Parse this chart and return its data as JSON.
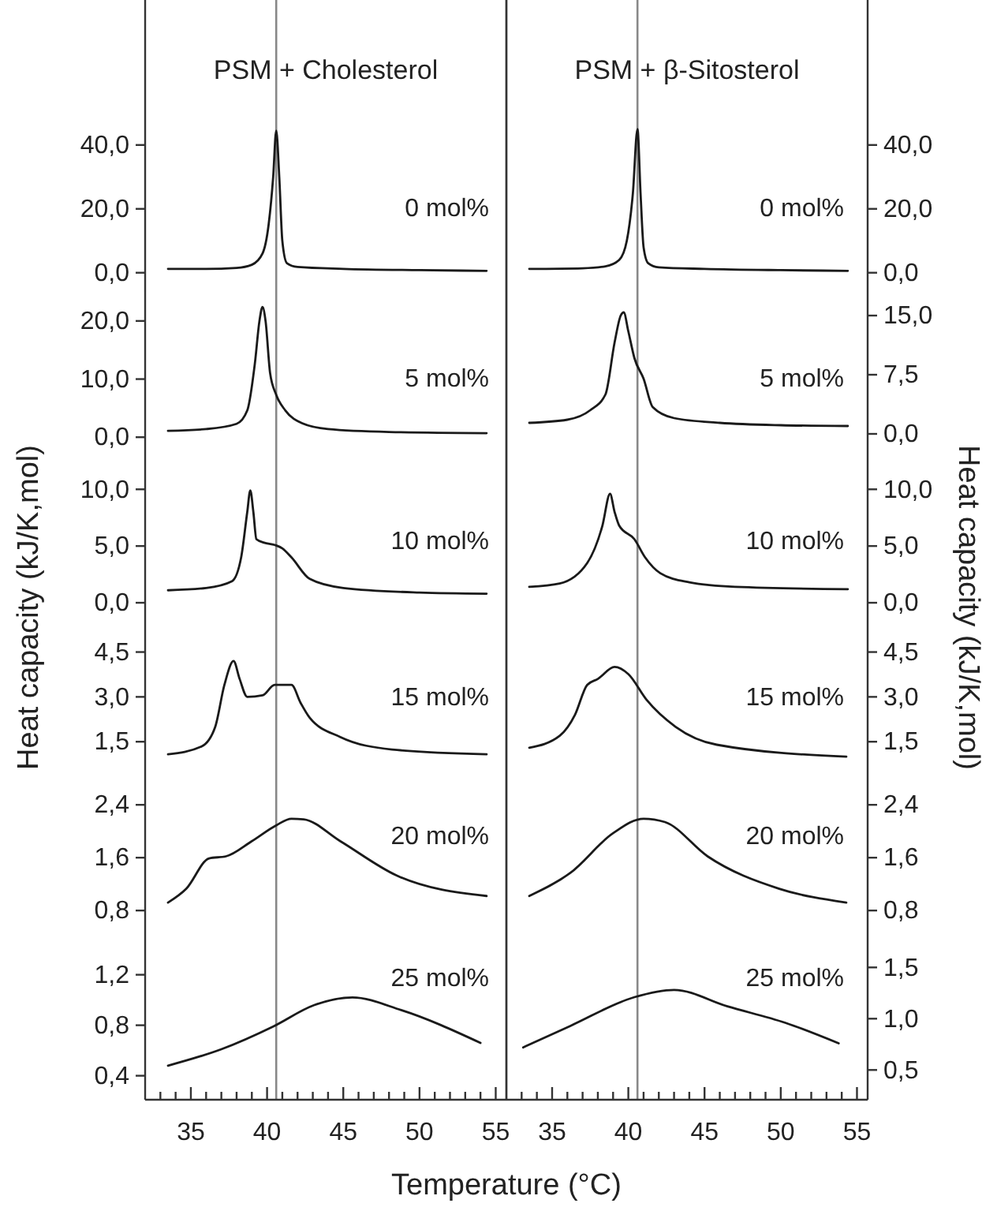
{
  "chart_data": [
    {
      "type": "line",
      "title": "PSM + Cholesterol",
      "annotations": [
        "0 mol%"
      ],
      "xlim": [
        32,
        55.7
      ],
      "ylim": [
        -6,
        85.4
      ],
      "yticks": [
        {
          "value": 0,
          "label": "0,0"
        },
        {
          "value": 20,
          "label": "20,0"
        },
        {
          "value": 40,
          "label": "40,0"
        }
      ],
      "tick_labels": "y",
      "ref_lines": [
        {
          "axis": "x",
          "value": 40.6,
          "color": "#888888"
        }
      ],
      "series": [
        {
          "color": "#1a1a1a",
          "x": [
            33.5,
            36,
            38,
            39,
            39.7,
            40.1,
            40.4,
            40.6,
            40.8,
            41.0,
            41.3,
            42,
            45,
            50,
            54.4
          ],
          "values": [
            1.2,
            1.2,
            1.5,
            2.5,
            6,
            15,
            30,
            44.5,
            30,
            10,
            3,
            1.8,
            1.2,
            0.8,
            0.6
          ]
        }
      ]
    },
    {
      "type": "line",
      "title": "PSM + β-Sitosterol",
      "annotations": [
        "0 mol%"
      ],
      "xlim": [
        32,
        55.7
      ],
      "ylim": [
        -6,
        85.4
      ],
      "yticks": [
        {
          "value": 0,
          "label": "0,0"
        },
        {
          "value": 20,
          "label": "20,0"
        },
        {
          "value": 40,
          "label": "40,0"
        }
      ],
      "tick_labels": "y",
      "ref_lines": [
        {
          "axis": "x",
          "value": 40.6,
          "color": "#888888"
        }
      ],
      "series": [
        {
          "color": "#1a1a1a",
          "x": [
            33.5,
            37,
            38.5,
            39.4,
            39.9,
            40.3,
            40.6,
            40.8,
            41.0,
            41.3,
            42,
            45,
            50,
            54.4
          ],
          "values": [
            1.2,
            1.4,
            2,
            4,
            10,
            25,
            45,
            25,
            8,
            3,
            1.7,
            1.2,
            0.8,
            0.6
          ]
        }
      ]
    },
    {
      "type": "line",
      "annotations": [
        "5 mol%"
      ],
      "xlim": [
        32,
        55.7
      ],
      "ylim": [
        -3.5,
        25
      ],
      "yticks": [
        {
          "value": 0,
          "label": "0,0"
        },
        {
          "value": 10,
          "label": "10,0"
        },
        {
          "value": 20,
          "label": "20,0"
        }
      ],
      "tick_labels": "y",
      "ref_lines": [
        {
          "axis": "x",
          "value": 40.6,
          "color": "#888888"
        }
      ],
      "series": [
        {
          "color": "#1a1a1a",
          "x": [
            33.5,
            36,
            38,
            38.7,
            39.2,
            39.5,
            39.7,
            39.9,
            40.2,
            40.6,
            41.2,
            42.3,
            44,
            48,
            54.4
          ],
          "values": [
            1.1,
            1.4,
            2.3,
            4.6,
            12.7,
            20,
            22.4,
            20,
            11,
            7.3,
            4.6,
            2.4,
            1.4,
            0.9,
            0.7
          ]
        }
      ]
    },
    {
      "type": "line",
      "annotations": [
        "5 mol%"
      ],
      "xlim": [
        32,
        55.7
      ],
      "ylim": [
        -3,
        18
      ],
      "yticks": [
        {
          "value": 0,
          "label": "0,0"
        },
        {
          "value": 7.5,
          "label": "7,5"
        },
        {
          "value": 15,
          "label": "15,0"
        }
      ],
      "tick_labels": "y",
      "ref_lines": [
        {
          "axis": "x",
          "value": 40.6,
          "color": "#888888"
        }
      ],
      "series": [
        {
          "color": "#1a1a1a",
          "x": [
            33.5,
            36,
            37.5,
            38.5,
            39.1,
            39.5,
            39.7,
            40.0,
            40.4,
            41.0,
            41.6,
            43,
            46,
            50,
            54.4
          ],
          "values": [
            1.4,
            1.8,
            3,
            5,
            11.6,
            15,
            15.4,
            13,
            9.6,
            7,
            3.4,
            2,
            1.4,
            1.1,
            1.0
          ]
        }
      ]
    },
    {
      "type": "line",
      "annotations": [
        "10 mol%"
      ],
      "ylabel": "Heat capacity (kJ/K,mol)",
      "xlim": [
        32,
        55.7
      ],
      "ylim": [
        -2.5,
        12.8
      ],
      "yticks": [
        {
          "value": 0,
          "label": "0,0"
        },
        {
          "value": 5,
          "label": "5,0"
        },
        {
          "value": 10,
          "label": "10,0"
        }
      ],
      "tick_labels": "y",
      "ref_lines": [
        {
          "axis": "x",
          "value": 40.6,
          "color": "#888888"
        }
      ],
      "series": [
        {
          "color": "#1a1a1a",
          "x": [
            33.5,
            36,
            37.7,
            38.3,
            38.7,
            38.9,
            39.1,
            39.3,
            39.8,
            40.5,
            41.0,
            41.6,
            42.8,
            45,
            50,
            54.4
          ],
          "values": [
            1.1,
            1.3,
            1.9,
            4,
            8,
            9.9,
            8,
            5.6,
            5.3,
            5.1,
            4.8,
            4.0,
            2.1,
            1.3,
            0.9,
            0.8
          ]
        }
      ]
    },
    {
      "type": "line",
      "annotations": [
        "10 mol%"
      ],
      "ylabel": "Heat capacity (kJ/K,mol)",
      "xlim": [
        32,
        55.7
      ],
      "ylim": [
        -2.5,
        12.8
      ],
      "yticks": [
        {
          "value": 0,
          "label": "0,0"
        },
        {
          "value": 5,
          "label": "5,0"
        },
        {
          "value": 10,
          "label": "10,0"
        }
      ],
      "tick_labels": "y",
      "ref_lines": [
        {
          "axis": "x",
          "value": 40.6,
          "color": "#888888"
        }
      ],
      "series": [
        {
          "color": "#1a1a1a",
          "x": [
            33.5,
            35.5,
            37.3,
            38.3,
            38.8,
            39.1,
            39.4,
            40.4,
            41.1,
            42.1,
            44,
            47,
            54.4
          ],
          "values": [
            1.4,
            1.7,
            3.5,
            6.8,
            9.6,
            8,
            6.8,
            5.6,
            4.0,
            2.6,
            1.8,
            1.4,
            1.2
          ]
        }
      ]
    },
    {
      "type": "line",
      "annotations": [
        "15 mol%"
      ],
      "xlim": [
        32,
        55.7
      ],
      "ylim": [
        0.45,
        5.2
      ],
      "yticks": [
        {
          "value": 1.5,
          "label": "1,5"
        },
        {
          "value": 3,
          "label": "3,0"
        },
        {
          "value": 4.5,
          "label": "4,5"
        }
      ],
      "tick_labels": "y",
      "ref_lines": [
        {
          "axis": "x",
          "value": 40.6,
          "color": "#888888"
        }
      ],
      "series": [
        {
          "color": "#1a1a1a",
          "x": [
            33.5,
            35.7,
            36.6,
            37.2,
            37.8,
            38.2,
            38.7,
            39.7,
            40.5,
            41.6,
            42.2,
            42.8,
            44.8,
            48.2,
            54.4
          ],
          "values": [
            1.08,
            1.34,
            2.0,
            3.4,
            4.2,
            3.6,
            3.0,
            3.05,
            3.4,
            3.4,
            2.8,
            2.3,
            1.66,
            1.24,
            1.08
          ]
        }
      ]
    },
    {
      "type": "line",
      "annotations": [
        "15 mol%"
      ],
      "xlim": [
        32,
        55.7
      ],
      "ylim": [
        0.45,
        5.2
      ],
      "yticks": [
        {
          "value": 1.5,
          "label": "1,5"
        },
        {
          "value": 3,
          "label": "3,0"
        },
        {
          "value": 4.5,
          "label": "4,5"
        }
      ],
      "tick_labels": "y",
      "ref_lines": [
        {
          "axis": "x",
          "value": 40.6,
          "color": "#888888"
        }
      ],
      "series": [
        {
          "color": "#1a1a1a",
          "x": [
            33.5,
            35.5,
            36.5,
            37.3,
            38.0,
            39.1,
            40.0,
            41.2,
            43.1,
            45.8,
            54.3
          ],
          "values": [
            1.3,
            1.7,
            2.4,
            3.4,
            3.6,
            4.0,
            3.76,
            2.9,
            2.0,
            1.4,
            1.0
          ]
        }
      ]
    },
    {
      "type": "line",
      "annotations": [
        "20 mol%"
      ],
      "xlim": [
        32,
        55.7
      ],
      "ylim": [
        0.42,
        2.88
      ],
      "yticks": [
        {
          "value": 0.8,
          "label": "0,8"
        },
        {
          "value": 1.6,
          "label": "1,6"
        },
        {
          "value": 2.4,
          "label": "2,4"
        }
      ],
      "tick_labels": "y",
      "ref_lines": [
        {
          "axis": "x",
          "value": 40.6,
          "color": "#888888"
        }
      ],
      "series": [
        {
          "color": "#1a1a1a",
          "x": [
            33.5,
            34.7,
            36.2,
            37.3,
            39.0,
            40.6,
            41.6,
            42.4,
            44.8,
            48.5,
            54.4
          ],
          "values": [
            0.92,
            1.13,
            1.59,
            1.62,
            1.85,
            2.09,
            2.19,
            2.18,
            1.85,
            1.33,
            1.02
          ]
        }
      ]
    },
    {
      "type": "line",
      "annotations": [
        "20 mol%"
      ],
      "xlim": [
        32,
        55.7
      ],
      "ylim": [
        0.42,
        2.88
      ],
      "yticks": [
        {
          "value": 0.8,
          "label": "0,8"
        },
        {
          "value": 1.6,
          "label": "1,6"
        },
        {
          "value": 2.4,
          "label": "2,4"
        }
      ],
      "tick_labels": "y",
      "ref_lines": [
        {
          "axis": "x",
          "value": 40.6,
          "color": "#888888"
        }
      ],
      "series": [
        {
          "color": "#1a1a1a",
          "x": [
            33.5,
            36.2,
            39.0,
            41.0,
            42.4,
            45.2,
            49.9,
            54.3
          ],
          "values": [
            1.02,
            1.37,
            1.97,
            2.19,
            2.14,
            1.62,
            1.13,
            0.92
          ]
        }
      ]
    },
    {
      "type": "line",
      "annotations": [
        "25 mol%"
      ],
      "xlabel": "Temperature (°C)",
      "xlim": [
        32,
        55.7
      ],
      "ylim": [
        0.21,
        1.51
      ],
      "xticks": [
        {
          "value": 33,
          "label": null
        },
        {
          "value": 34,
          "label": null
        },
        35,
        {
          "value": 36,
          "label": null
        },
        {
          "value": 37,
          "label": null
        },
        {
          "value": 38,
          "label": null
        },
        {
          "value": 39,
          "label": null
        },
        40,
        {
          "value": 41,
          "label": null
        },
        {
          "value": 42,
          "label": null
        },
        {
          "value": 43,
          "label": null
        },
        {
          "value": 44,
          "label": null
        },
        45,
        {
          "value": 46,
          "label": null
        },
        {
          "value": 47,
          "label": null
        },
        {
          "value": 48,
          "label": null
        },
        {
          "value": 49,
          "label": null
        },
        50,
        {
          "value": 51,
          "label": null
        },
        {
          "value": 52,
          "label": null
        },
        {
          "value": 53,
          "label": null
        },
        {
          "value": 54,
          "label": null
        },
        55
      ],
      "yticks": [
        {
          "value": 0.4,
          "label": "0,4"
        },
        {
          "value": 0.8,
          "label": "0,8"
        },
        {
          "value": 1.2,
          "label": "1,2"
        }
      ],
      "ref_lines": [
        {
          "axis": "x",
          "value": 40.6,
          "color": "#888888"
        }
      ],
      "series": [
        {
          "color": "#1a1a1a",
          "x": [
            33.5,
            37.0,
            40.4,
            43.1,
            45.6,
            48.8,
            54.0
          ],
          "values": [
            0.48,
            0.61,
            0.79,
            0.96,
            1.02,
            0.92,
            0.66
          ]
        }
      ]
    },
    {
      "type": "line",
      "annotations": [
        "25 mol%"
      ],
      "xlim": [
        32,
        55.7
      ],
      "ylim": [
        0.21,
        1.81
      ],
      "xticks": [
        {
          "value": 33,
          "label": null
        },
        {
          "value": 34,
          "label": null
        },
        35,
        {
          "value": 36,
          "label": null
        },
        {
          "value": 37,
          "label": null
        },
        {
          "value": 38,
          "label": null
        },
        {
          "value": 39,
          "label": null
        },
        40,
        {
          "value": 41,
          "label": null
        },
        {
          "value": 42,
          "label": null
        },
        {
          "value": 43,
          "label": null
        },
        {
          "value": 44,
          "label": null
        },
        45,
        {
          "value": 46,
          "label": null
        },
        {
          "value": 47,
          "label": null
        },
        {
          "value": 48,
          "label": null
        },
        {
          "value": 49,
          "label": null
        },
        50,
        {
          "value": 51,
          "label": null
        },
        {
          "value": 52,
          "label": null
        },
        {
          "value": 53,
          "label": null
        },
        {
          "value": 54,
          "label": null
        },
        55
      ],
      "yticks": [
        {
          "value": 0.5,
          "label": "0,5"
        },
        {
          "value": 1,
          "label": "1,0"
        },
        {
          "value": 1.5,
          "label": "1,5"
        }
      ],
      "ref_lines": [
        {
          "axis": "x",
          "value": 40.6,
          "color": "#888888"
        }
      ],
      "series": [
        {
          "color": "#1a1a1a",
          "x": [
            33.1,
            36.2,
            40.4,
            43.0,
            46.5,
            50.3,
            53.8
          ],
          "values": [
            0.72,
            0.93,
            1.21,
            1.28,
            1.12,
            0.96,
            0.76
          ]
        }
      ]
    }
  ]
}
